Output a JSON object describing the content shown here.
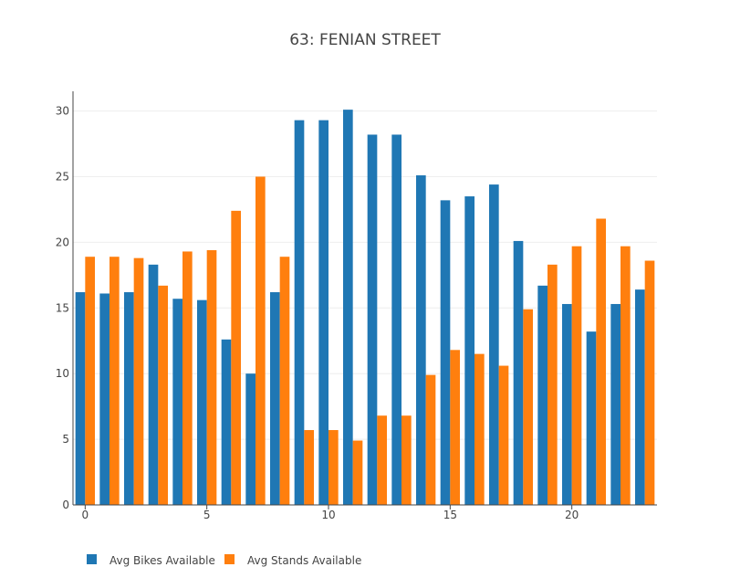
{
  "chart_data": {
    "type": "bar",
    "title": "63: FENIAN STREET",
    "xlabel": "",
    "ylabel": "",
    "x": [
      0,
      1,
      2,
      3,
      4,
      5,
      6,
      7,
      8,
      9,
      10,
      11,
      12,
      13,
      14,
      15,
      16,
      17,
      18,
      19,
      20,
      21,
      22,
      23
    ],
    "x_ticks": [
      0,
      5,
      10,
      15,
      20
    ],
    "y_ticks": [
      0,
      5,
      10,
      15,
      20,
      25,
      30
    ],
    "xlim": [
      -0.5,
      23.5
    ],
    "ylim": [
      0,
      31.5
    ],
    "grid": true,
    "legend_placement": "bottom-left",
    "series": [
      {
        "name": "Avg Bikes Available",
        "color": "#1f77b4",
        "values": [
          16.2,
          16.1,
          16.2,
          18.3,
          15.7,
          15.6,
          12.6,
          10.0,
          16.2,
          29.3,
          29.3,
          30.1,
          28.2,
          28.2,
          25.1,
          23.2,
          23.5,
          24.4,
          20.1,
          16.7,
          15.3,
          13.2,
          15.3,
          16.4
        ]
      },
      {
        "name": "Avg Stands Available",
        "color": "#ff7f0e",
        "values": [
          18.9,
          18.9,
          18.8,
          16.7,
          19.3,
          19.4,
          22.4,
          25.0,
          18.9,
          5.7,
          5.7,
          4.9,
          6.8,
          6.8,
          9.9,
          11.8,
          11.5,
          10.6,
          14.9,
          18.3,
          19.7,
          21.8,
          19.7,
          18.6
        ]
      }
    ]
  }
}
